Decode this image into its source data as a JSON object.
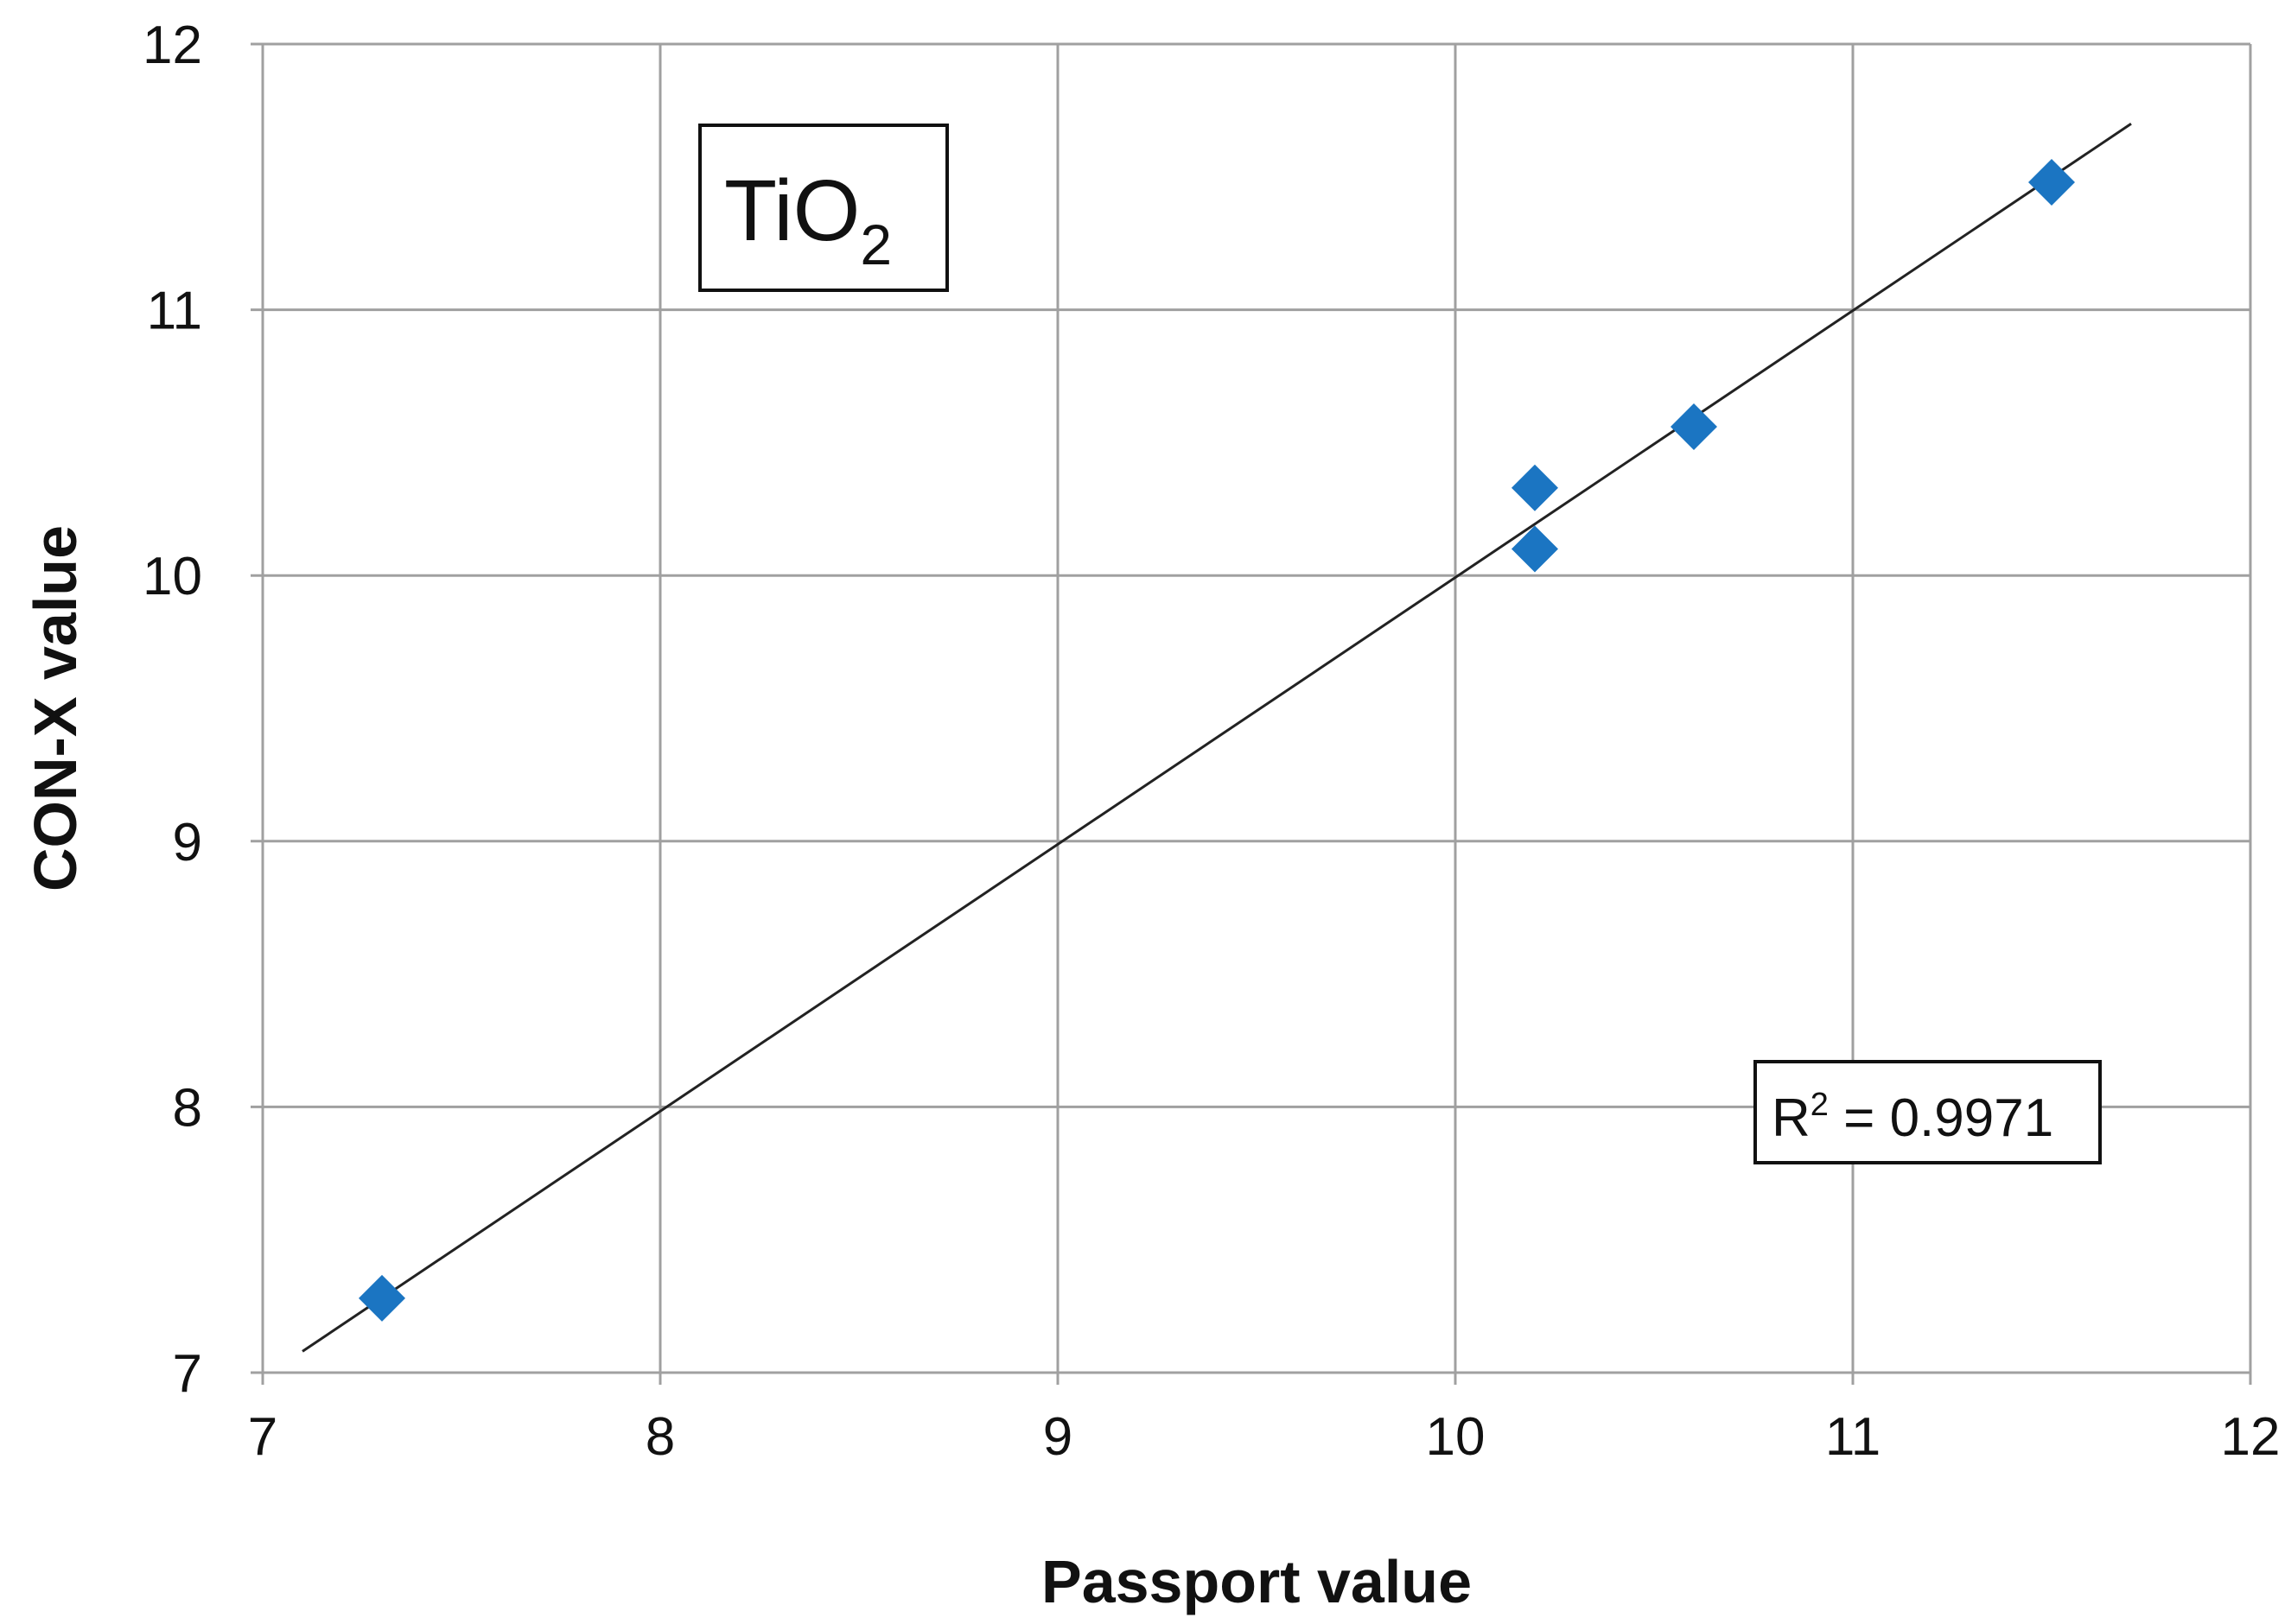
{
  "chart_data": {
    "type": "scatter",
    "xlabel": "Passport value",
    "ylabel": "CON-X value",
    "xlim": [
      7,
      12
    ],
    "ylim": [
      7,
      12
    ],
    "xticks": [
      "7",
      "8",
      "9",
      "10",
      "11",
      "12"
    ],
    "yticks": [
      "7",
      "8",
      "9",
      "10",
      "11",
      "12"
    ],
    "grid": true,
    "annotation_main": "TiO",
    "annotation_sub": "2",
    "r2_prefix": "R",
    "r2_sup": "2",
    "r2_value": " = 0.9971",
    "points": [
      {
        "x": 7.3,
        "y": 7.28
      },
      {
        "x": 10.2,
        "y": 10.33
      },
      {
        "x": 10.2,
        "y": 10.1
      },
      {
        "x": 10.6,
        "y": 10.56
      },
      {
        "x": 11.5,
        "y": 11.48
      }
    ],
    "trendline": {
      "x": [
        7.1,
        11.7
      ],
      "y": [
        7.08,
        11.7
      ]
    },
    "marker": "diamond",
    "marker_color": "#1b75c2",
    "trendline_color": "#222222",
    "grid_color": "#a0a0a0"
  }
}
